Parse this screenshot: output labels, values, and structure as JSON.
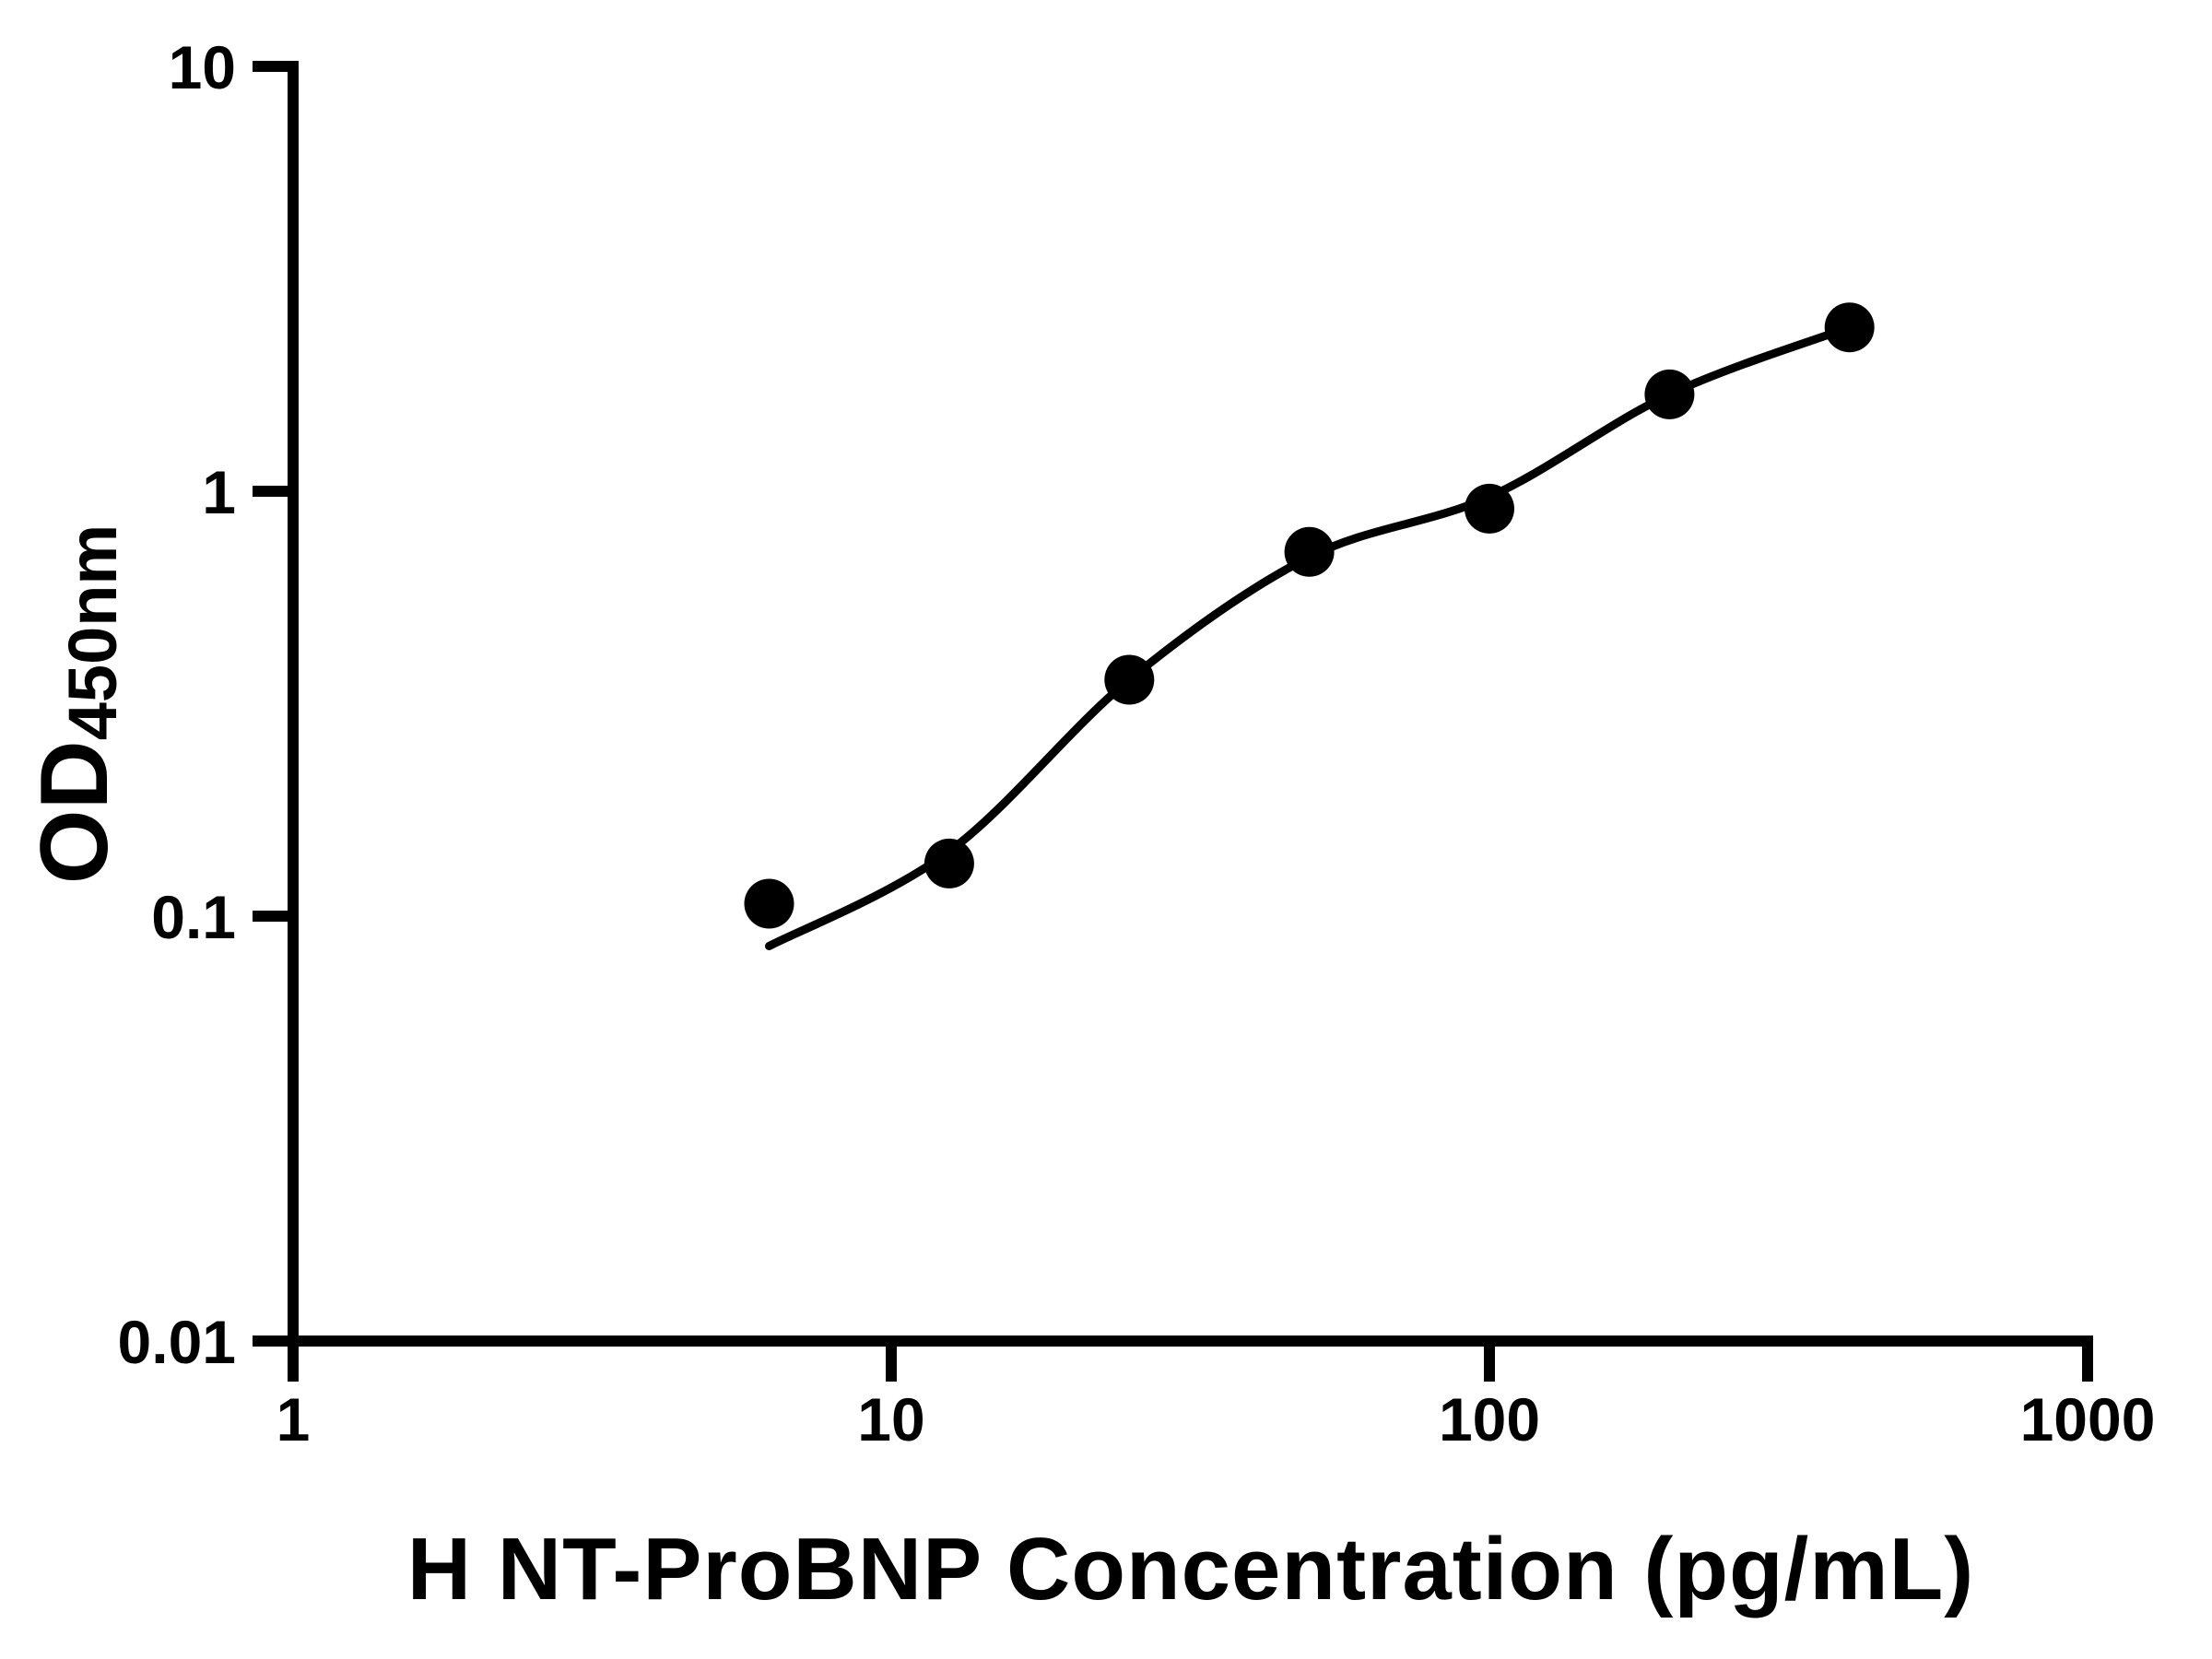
{
  "figure": {
    "background_color": "#ffffff",
    "ink_color": "#000000",
    "kind": "ELISA standard curve plot"
  },
  "chart_data": {
    "type": "scatter",
    "title": "",
    "xlabel": "H NT-ProBNP Concentration (pg/mL)",
    "ylabel_main": "OD",
    "ylabel_subscript": "450nm",
    "x_scale": "log",
    "y_scale": "log",
    "xlim": [
      1,
      1000
    ],
    "ylim": [
      0.01,
      10
    ],
    "grid": false,
    "legend": "none",
    "x_ticks": [
      {
        "value": 1,
        "label": "1"
      },
      {
        "value": 10,
        "label": "10"
      },
      {
        "value": 100,
        "label": "100"
      },
      {
        "value": 1000,
        "label": "1000"
      }
    ],
    "y_ticks": [
      {
        "value": 10,
        "label": "10"
      },
      {
        "value": 1,
        "label": "1"
      },
      {
        "value": 0.1,
        "label": "0.1"
      },
      {
        "value": 0.01,
        "label": "0.01"
      }
    ],
    "series": [
      {
        "name": "standard-points",
        "type": "scatter",
        "marker": "filled-circle",
        "color": "#000000",
        "x": [
          6.25,
          12.5,
          25,
          50,
          100,
          200,
          400
        ],
        "y": [
          0.107,
          0.133,
          0.36,
          0.72,
          0.91,
          1.69,
          2.43
        ]
      },
      {
        "name": "fitted-curve",
        "type": "line",
        "color": "#000000",
        "x": [
          6.25,
          12.5,
          25,
          50,
          100,
          200,
          400
        ],
        "y": [
          0.085,
          0.142,
          0.36,
          0.7,
          0.97,
          1.69,
          2.43
        ]
      }
    ]
  }
}
